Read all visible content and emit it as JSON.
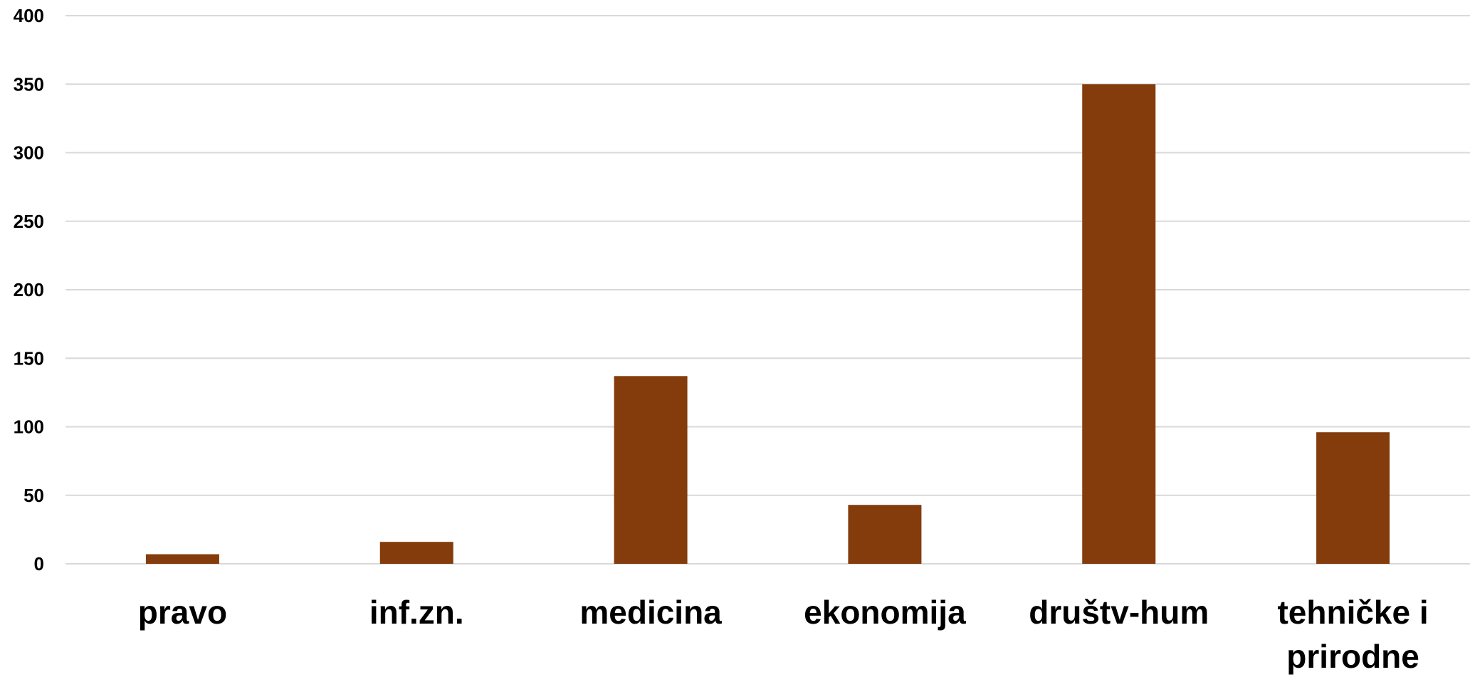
{
  "chart_data": {
    "type": "bar",
    "title": "",
    "xlabel": "",
    "ylabel": "",
    "categories": [
      "pravo",
      "inf.zn.",
      "medicina",
      "ekonomija",
      "društv-hum",
      "tehničke i prirodne"
    ],
    "category_lines": [
      [
        "pravo"
      ],
      [
        "inf.zn."
      ],
      [
        "medicina"
      ],
      [
        "ekonomija"
      ],
      [
        "društv-hum"
      ],
      [
        "tehničke i",
        "prirodne"
      ]
    ],
    "values": [
      7,
      16,
      137,
      43,
      350,
      96
    ],
    "ylim": [
      0,
      400
    ],
    "yticks": [
      0,
      50,
      100,
      150,
      200,
      250,
      300,
      350,
      400
    ],
    "grid": true,
    "legend": "none",
    "bar_color": "#843c0c"
  }
}
